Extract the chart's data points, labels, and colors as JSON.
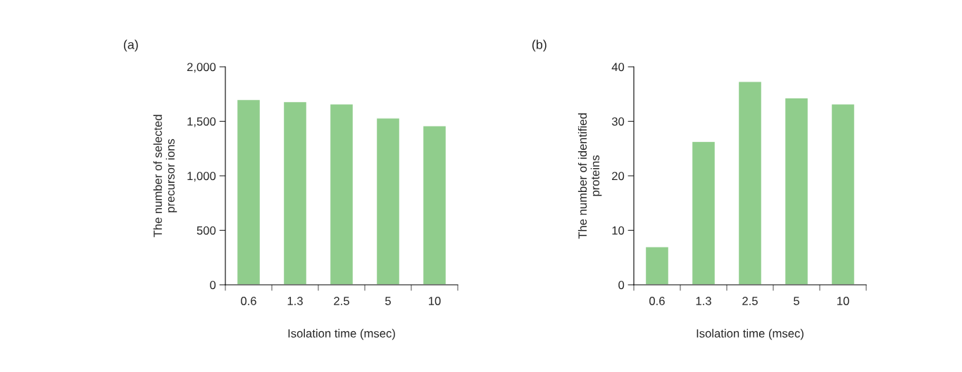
{
  "chart_data": [
    {
      "type": "bar",
      "title": "(a)",
      "xlabel": "Isolation time (msec)",
      "ylabel": "The number of selected\nprecursor ions",
      "categories": [
        "0.6",
        "1.3",
        "2.5",
        "5",
        "10"
      ],
      "values": [
        1700,
        1680,
        1660,
        1530,
        1460
      ],
      "color": "#90cd8c",
      "ylim": [
        0,
        2000
      ],
      "yticks": [
        {
          "value": 0,
          "label": "0"
        },
        {
          "value": 500,
          "label": "500"
        },
        {
          "value": 1000,
          "label": "1,000"
        },
        {
          "value": 1500,
          "label": "1,500"
        },
        {
          "value": 2000,
          "label": "2,000"
        }
      ],
      "grid": false,
      "legend": false
    },
    {
      "type": "bar",
      "title": "(b)",
      "xlabel": "Isolation time (msec)",
      "ylabel": "The number of identified\nproteins",
      "categories": [
        "0.6",
        "1.3",
        "2.5",
        "5",
        "10"
      ],
      "values": [
        7,
        26.3,
        37.3,
        34.3,
        33.2
      ],
      "color": "#90cd8c",
      "ylim": [
        0,
        40
      ],
      "yticks": [
        0,
        10,
        20,
        30,
        40
      ],
      "grid": false,
      "legend": false
    }
  ]
}
